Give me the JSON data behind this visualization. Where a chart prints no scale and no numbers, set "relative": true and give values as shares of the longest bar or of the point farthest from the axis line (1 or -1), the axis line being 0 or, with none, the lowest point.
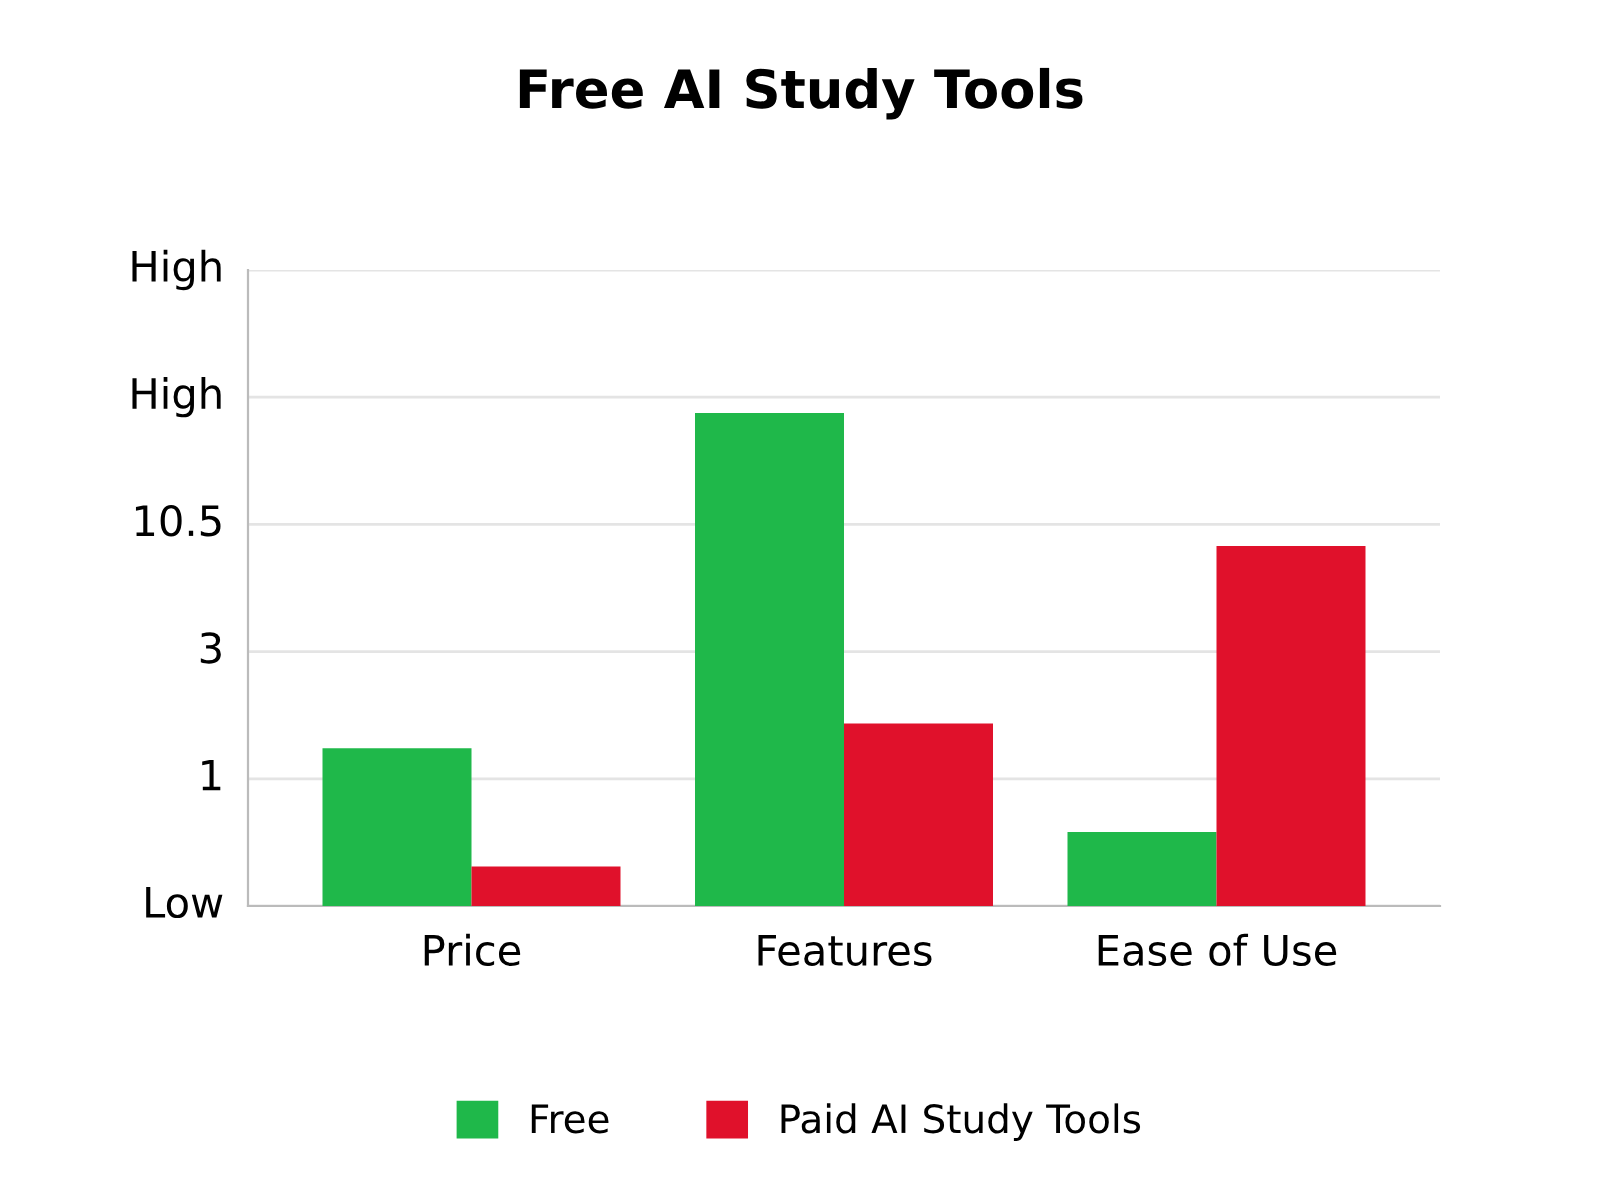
{
  "chart_data": {
    "type": "bar",
    "title": "Free AI Study Tools",
    "categories": [
      "Price",
      "Features",
      "Ease of Use"
    ],
    "series": [
      {
        "name": "Free",
        "color": "#1fb84a",
        "values": [
          0.32,
          1,
          0.15
        ]
      },
      {
        "name": "Paid AI Study Tools",
        "color": "#e0112b",
        "values": [
          0.08,
          0.37,
          0.73
        ]
      }
    ],
    "relative": true,
    "annotations": [
      "Low",
      "1",
      "3",
      "10.5",
      "High",
      "High"
    ],
    "grid": "y",
    "legend": "bottom"
  }
}
